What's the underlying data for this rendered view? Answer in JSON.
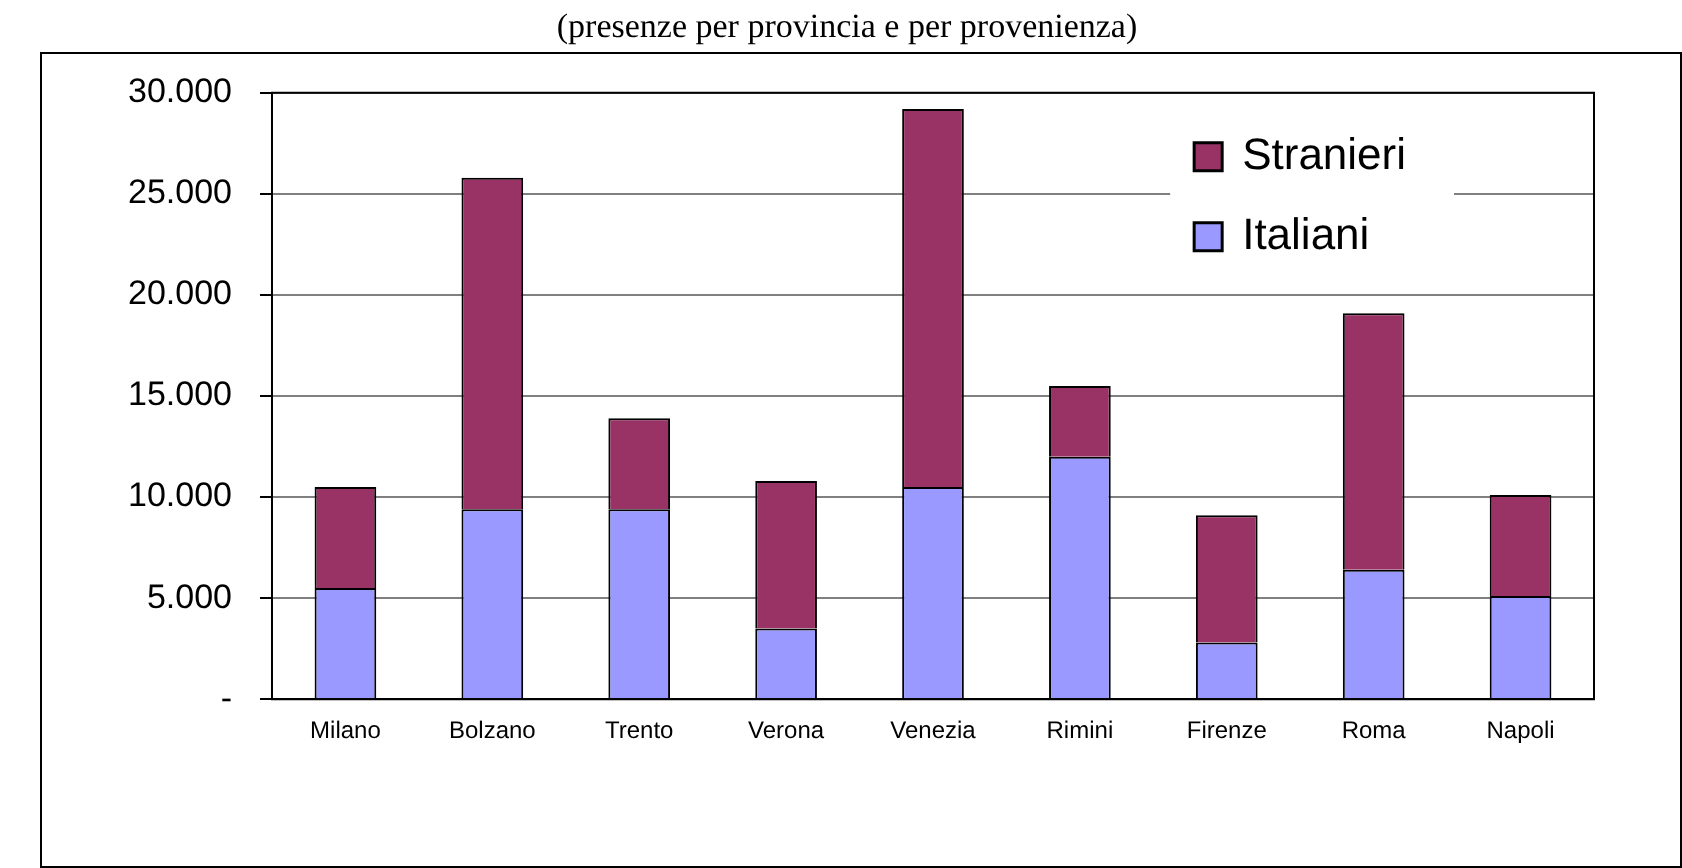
{
  "chart_data": {
    "type": "bar",
    "stacked": true,
    "subtitle": "(presenze per provincia e per provenienza)",
    "categories": [
      "Milano",
      "Bolzano",
      "Trento",
      "Verona",
      "Venezia",
      "Rimini",
      "Firenze",
      "Roma",
      "Napoli"
    ],
    "series": [
      {
        "name": "Italiani",
        "color": "#9999ff",
        "values": [
          5500,
          9400,
          9400,
          3500,
          10500,
          12000,
          2800,
          6400,
          5100
        ]
      },
      {
        "name": "Stranieri",
        "color": "#993366",
        "values": [
          5000,
          16400,
          4500,
          7300,
          18700,
          3500,
          6300,
          12700,
          5000
        ]
      }
    ],
    "ylim": [
      0,
      30000
    ],
    "yticks": [
      {
        "value": 0,
        "label": "-"
      },
      {
        "value": 5000,
        "label": "5.000"
      },
      {
        "value": 10000,
        "label": "10.000"
      },
      {
        "value": 15000,
        "label": "15.000"
      },
      {
        "value": 20000,
        "label": "20.000"
      },
      {
        "value": 25000,
        "label": "25.000"
      },
      {
        "value": 30000,
        "label": "30.000"
      }
    ],
    "grid": "y",
    "legend": "top right"
  }
}
